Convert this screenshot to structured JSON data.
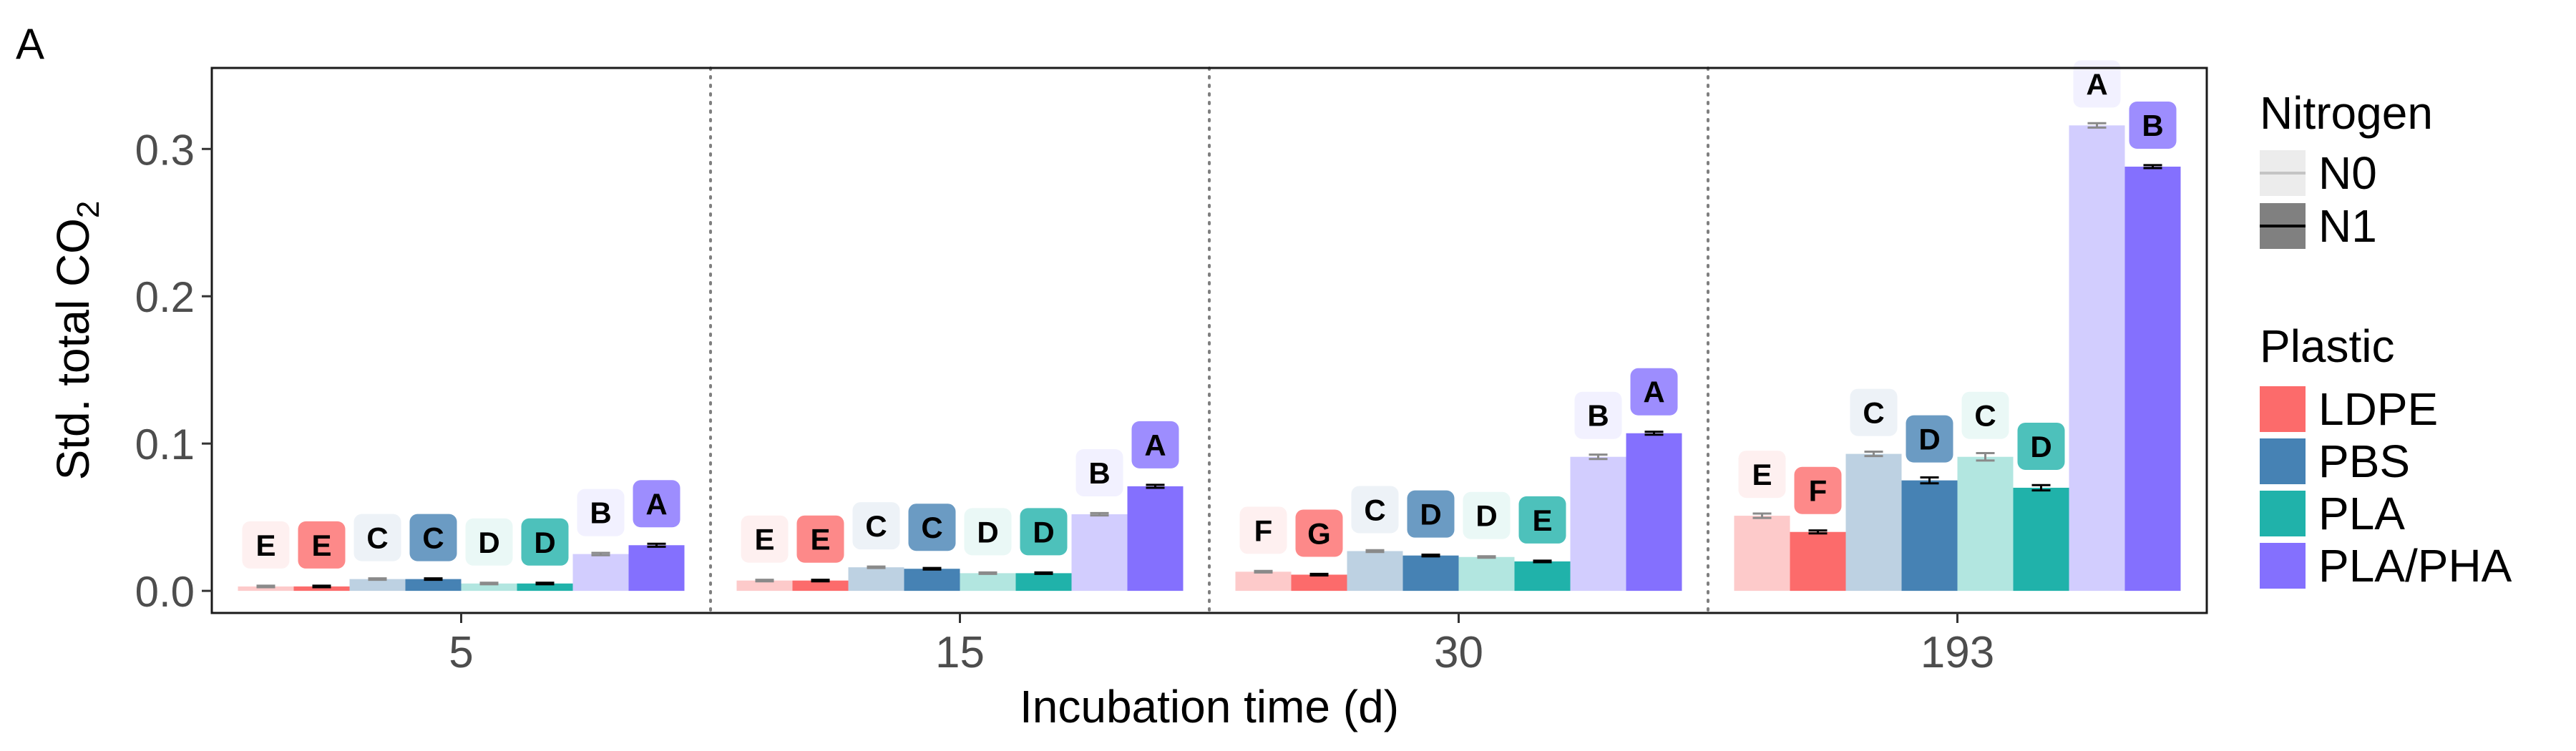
{
  "panel_label": "A",
  "chart_data": {
    "type": "bar",
    "xlabel": "Incubation time (d)",
    "ylabel_main": "Std. total CO",
    "ylabel_sub": "2",
    "ylim": [
      -0.015,
      0.355
    ],
    "yticks": [
      "0.0",
      "0.1",
      "0.2",
      "0.3"
    ],
    "ytick_values": [
      0.0,
      0.1,
      0.2,
      0.3
    ],
    "grid": false,
    "legend_placement": "right",
    "categories": [
      "5",
      "15",
      "30",
      "193"
    ],
    "bar_order": [
      {
        "plastic": "LDPE",
        "nitrogen": "N0"
      },
      {
        "plastic": "LDPE",
        "nitrogen": "N1"
      },
      {
        "plastic": "PBS",
        "nitrogen": "N0"
      },
      {
        "plastic": "PBS",
        "nitrogen": "N1"
      },
      {
        "plastic": "PLA",
        "nitrogen": "N0"
      },
      {
        "plastic": "PLA",
        "nitrogen": "N1"
      },
      {
        "plastic": "PLA/PHA",
        "nitrogen": "N0"
      },
      {
        "plastic": "PLA/PHA",
        "nitrogen": "N1"
      }
    ],
    "values": [
      [
        0.003,
        0.003,
        0.008,
        0.008,
        0.005,
        0.005,
        0.025,
        0.031
      ],
      [
        0.007,
        0.007,
        0.016,
        0.015,
        0.012,
        0.012,
        0.052,
        0.071
      ],
      [
        0.013,
        0.011,
        0.027,
        0.024,
        0.023,
        0.02,
        0.091,
        0.107
      ],
      [
        0.051,
        0.04,
        0.093,
        0.075,
        0.091,
        0.07,
        0.316,
        0.288
      ]
    ],
    "errors": [
      [
        0.0005,
        0.0005,
        0.0005,
        0.0005,
        0.0005,
        0.0005,
        0.0008,
        0.001
      ],
      [
        0.0005,
        0.0005,
        0.0005,
        0.0005,
        0.0005,
        0.0005,
        0.0008,
        0.001
      ],
      [
        0.0005,
        0.0005,
        0.0006,
        0.0006,
        0.0005,
        0.0005,
        0.0015,
        0.001
      ],
      [
        0.0015,
        0.001,
        0.0015,
        0.002,
        0.0025,
        0.0018,
        0.0015,
        0.001
      ]
    ],
    "letters": [
      [
        "E",
        "E",
        "C",
        "C",
        "D",
        "D",
        "B",
        "A"
      ],
      [
        "E",
        "E",
        "C",
        "C",
        "D",
        "D",
        "B",
        "A"
      ],
      [
        "F",
        "G",
        "C",
        "D",
        "D",
        "E",
        "B",
        "A"
      ],
      [
        "E",
        "F",
        "C",
        "D",
        "C",
        "D",
        "A",
        "B"
      ]
    ],
    "colors": {
      "LDPE": {
        "N0": "#fdcaca",
        "N1": "#fc6b6b"
      },
      "PBS": {
        "N0": "#bdd1e2",
        "N1": "#4682b4"
      },
      "PLA": {
        "N0": "#b2e6e0",
        "N1": "#20b2aa"
      },
      "PLA/PHA": {
        "N0": "#d2cdfe",
        "N1": "#8470fe"
      }
    },
    "legend_nitrogen": {
      "title": "Nitrogen",
      "items": [
        "N0",
        "N1"
      ]
    },
    "legend_plastic": {
      "title": "Plastic",
      "items": [
        "LDPE",
        "PBS",
        "PLA",
        "PLA/PHA"
      ]
    }
  }
}
